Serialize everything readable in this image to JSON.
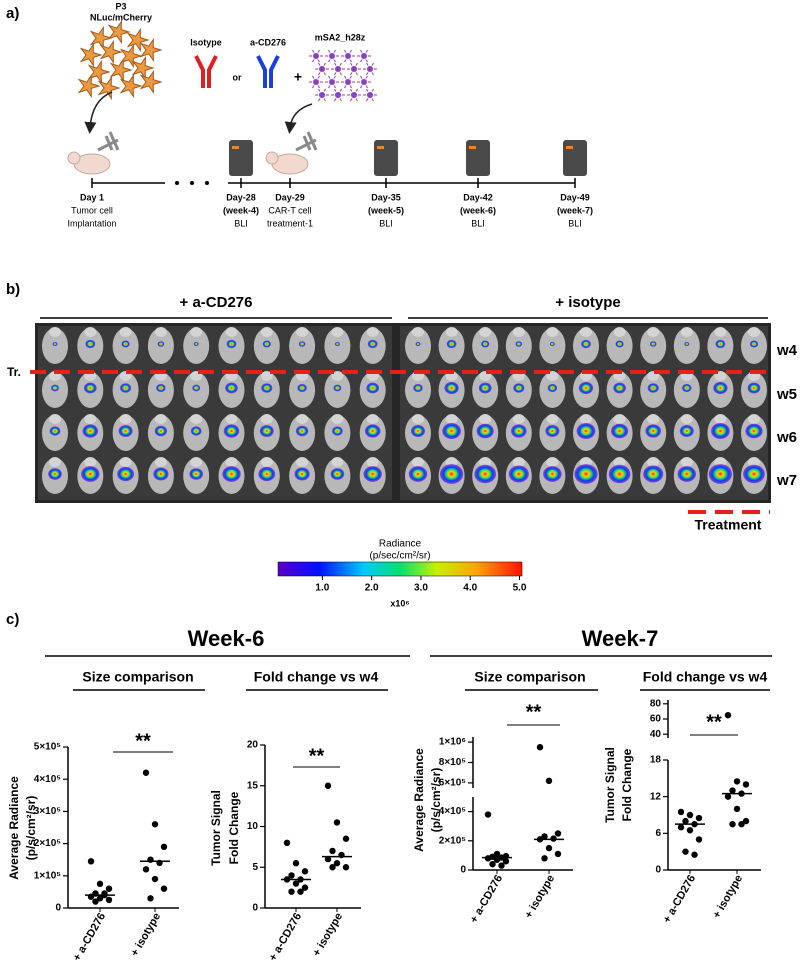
{
  "panel_a": {
    "label": "a)",
    "cell_line": [
      "P3",
      "NLuc/mCherry"
    ],
    "reagents": {
      "isotype": "Isotype",
      "or": "or",
      "target": "a-CD276",
      "plus": "+",
      "car": "mSA2_h28z"
    },
    "timeline": [
      {
        "day": "Day 1",
        "lines": [
          "Tumor cell",
          "Implantation"
        ]
      },
      {
        "day": "Day-28",
        "lines": [
          "(week-4)",
          "BLI"
        ]
      },
      {
        "day": "Day-29",
        "lines": [
          "CAR-T cell",
          "treatment-1"
        ]
      },
      {
        "day": "Day-35",
        "lines": [
          "(week-5)",
          "BLI"
        ]
      },
      {
        "day": "Day-42",
        "lines": [
          "(week-6)",
          "BLI"
        ]
      },
      {
        "day": "Day-49",
        "lines": [
          "(week-7)",
          "BLI"
        ]
      }
    ]
  },
  "panel_b": {
    "label": "b)",
    "groups": [
      "+ a-CD276",
      "+ isotype"
    ],
    "rows": [
      "w4",
      "w5",
      "w6",
      "w7"
    ],
    "treatment_marker": "Tr.",
    "treatment": "Treatment",
    "colorbar": {
      "title": [
        "Radiance",
        "(p/sec/cm²/sr)"
      ],
      "lim": [
        0.1,
        5.05
      ],
      "ticks": [
        {
          "value": 1,
          "label": "1.0"
        },
        {
          "value": 2,
          "label": "2.0"
        },
        {
          "value": 3,
          "label": "3.0"
        },
        {
          "value": 4,
          "label": "4.0"
        },
        {
          "value": 5,
          "label": "5.0"
        }
      ],
      "multiplier": "x10⁶"
    }
  },
  "panel_c": {
    "label": "c)",
    "headers": [
      "Week-6",
      "Week-7"
    ]
  },
  "chart_data": [
    {
      "type": "scatter",
      "title": "Size comparison",
      "ylabel": [
        "Average Radiance",
        "(p/s/cm²/sr)"
      ],
      "categories": [
        "+ a-CD276",
        "+ isotype"
      ],
      "color": "#000000",
      "values": [
        [
          145000,
          75000,
          60000,
          45000,
          40000,
          35000,
          30000,
          25000,
          20000,
          45000
        ],
        [
          420000,
          260000,
          190000,
          150000,
          140000,
          120000,
          90000,
          60000,
          30000
        ]
      ],
      "medians": [
        40000,
        145000
      ],
      "annotation": "**",
      "ylim": [
        0,
        500000
      ],
      "yticks": [
        0,
        {
          "value": 100000,
          "label": "1×10⁵"
        },
        {
          "value": 200000,
          "label": "2×10⁵"
        },
        {
          "value": 300000,
          "label": "3×10⁵"
        },
        {
          "value": 400000,
          "label": "4×10⁵"
        },
        {
          "value": 500000,
          "label": "5×10⁵"
        }
      ]
    },
    {
      "type": "scatter",
      "title": "Fold change vs w4",
      "ylabel": [
        "Tumor Signal",
        "Fold Change"
      ],
      "categories": [
        "+ a-CD276",
        "+ isotype"
      ],
      "color": "#000000",
      "values": [
        [
          8,
          5.5,
          4.5,
          4,
          3.5,
          3.5,
          3,
          2.5,
          2,
          2
        ],
        [
          15,
          10.5,
          8.5,
          7,
          6.5,
          6,
          5.5,
          5,
          5
        ]
      ],
      "medians": [
        3.5,
        6.3
      ],
      "annotation": "**",
      "ylim": [
        0,
        20
      ],
      "yticks": [
        0,
        5,
        10,
        15,
        20
      ]
    },
    {
      "type": "scatter",
      "title": "Size comparison",
      "ylabel": [
        "Average Radiance",
        "(p/s/cm²/sr)"
      ],
      "categories": [
        "+ a-CD276",
        "+ isotype"
      ],
      "color": "#000000",
      "values": [
        [
          380000,
          110000,
          95000,
          90000,
          85000,
          80000,
          70000,
          60000,
          40000,
          30000
        ],
        [
          950000,
          620000,
          250000,
          230000,
          215000,
          210000,
          150000,
          110000,
          80000
        ]
      ],
      "medians": [
        85000,
        210000
      ],
      "annotation": "**",
      "ylim": [
        0,
        500000
      ],
      "yticks": [
        0,
        {
          "value": 200000,
          "label": "2×10⁵"
        },
        {
          "value": 400000,
          "label": "4×10⁵"
        }
      ],
      "ylim_upper": [
        550000,
        1050000
      ],
      "yticks_upper": [
        {
          "value": 600000,
          "label": "6×10⁵"
        },
        {
          "value": 800000,
          "label": "8×10⁵"
        },
        {
          "value": 1000000,
          "label": "1×10⁶"
        }
      ]
    },
    {
      "type": "scatter",
      "title": "Fold change vs w4",
      "ylabel": [
        "Tumor Signal",
        "Fold Change"
      ],
      "categories": [
        "+ a-CD276",
        "+ isotype"
      ],
      "color": "#000000",
      "values": [
        [
          9.5,
          9,
          8.5,
          8,
          7.5,
          7,
          6.5,
          5,
          3,
          2.5
        ],
        [
          65,
          14.5,
          14,
          13,
          12.5,
          12,
          10,
          8,
          7.5,
          7.5
        ]
      ],
      "medians": [
        7.5,
        12.5
      ],
      "annotation": "**",
      "ylim": [
        0,
        18
      ],
      "yticks": [
        0,
        6,
        12,
        18
      ],
      "ylim_upper": [
        35,
        85
      ],
      "yticks_upper": [
        40,
        60,
        80
      ]
    }
  ]
}
